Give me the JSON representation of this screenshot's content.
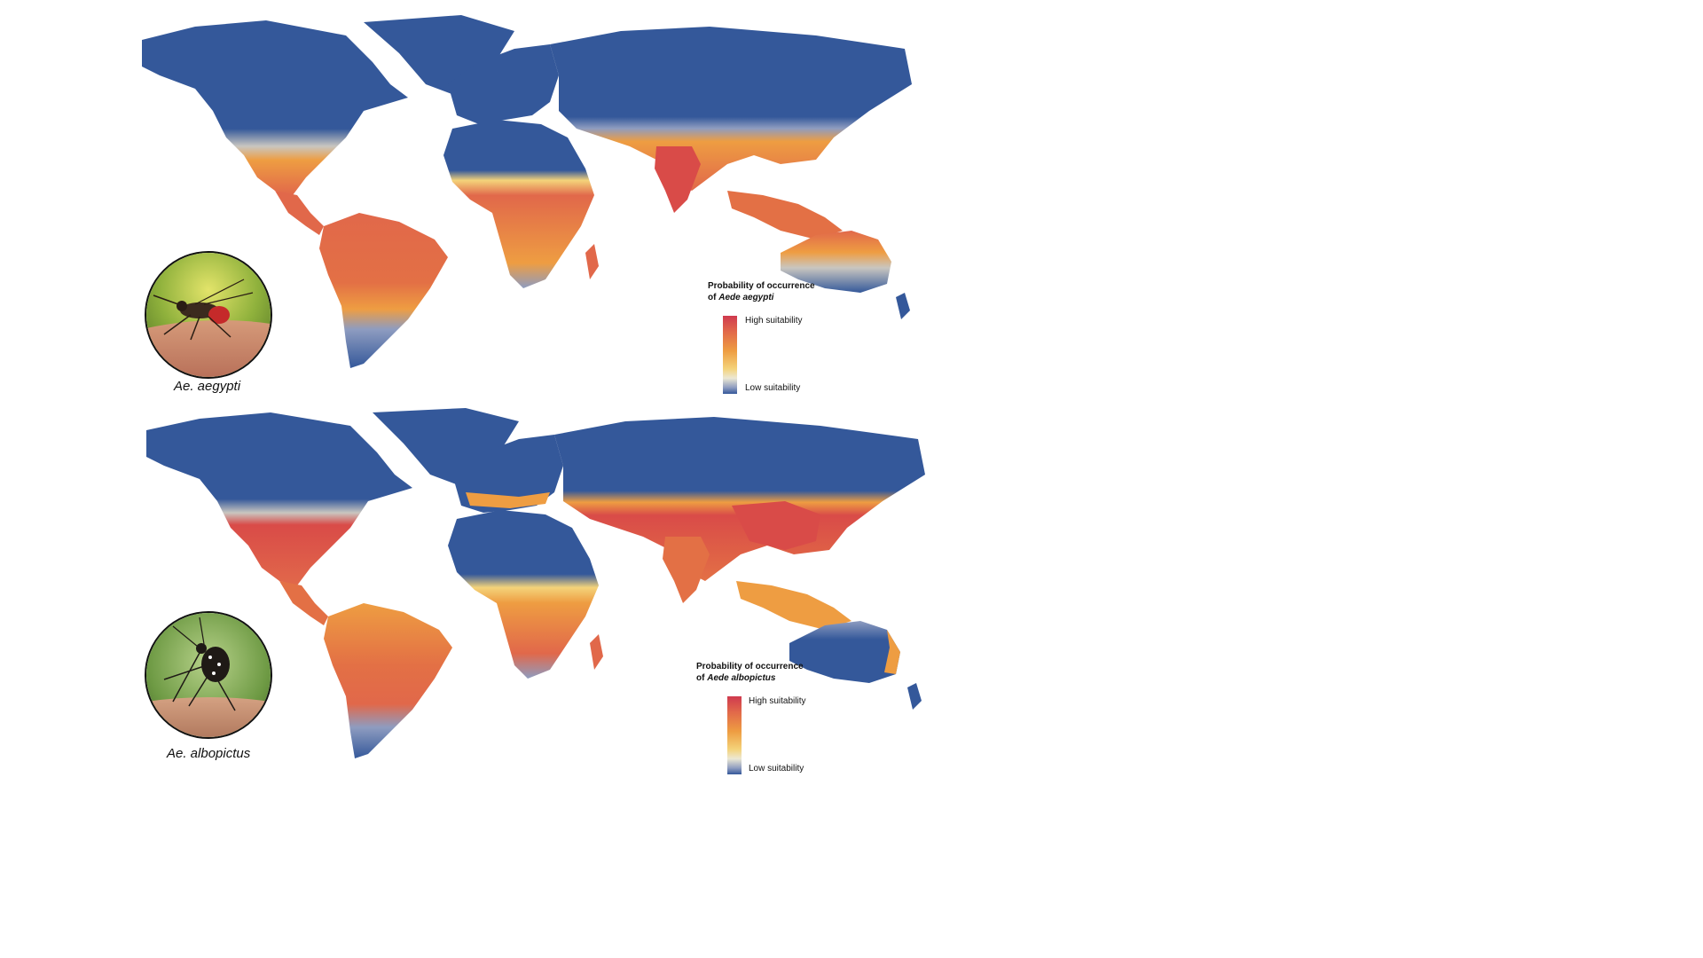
{
  "maps": [
    {
      "species_label": "Ae. aegypti",
      "legend": {
        "title_line1": "Probability of occurrence",
        "title_prefix": "of ",
        "title_species": "Aede aegypti",
        "high_label": "High suitability",
        "low_label": "Low suitability"
      }
    },
    {
      "species_label": "Ae. albopictus",
      "legend": {
        "title_line1": "Probability of occurrence",
        "title_prefix": "of ",
        "title_species": "Aede albopictus",
        "high_label": "High suitability",
        "low_label": "Low suitability"
      }
    }
  ],
  "colors": {
    "high": "#cf3a4f",
    "mid": "#ee9d42",
    "light": "#f4d37a",
    "low": "#34589a",
    "ocean": "#ffffff"
  }
}
